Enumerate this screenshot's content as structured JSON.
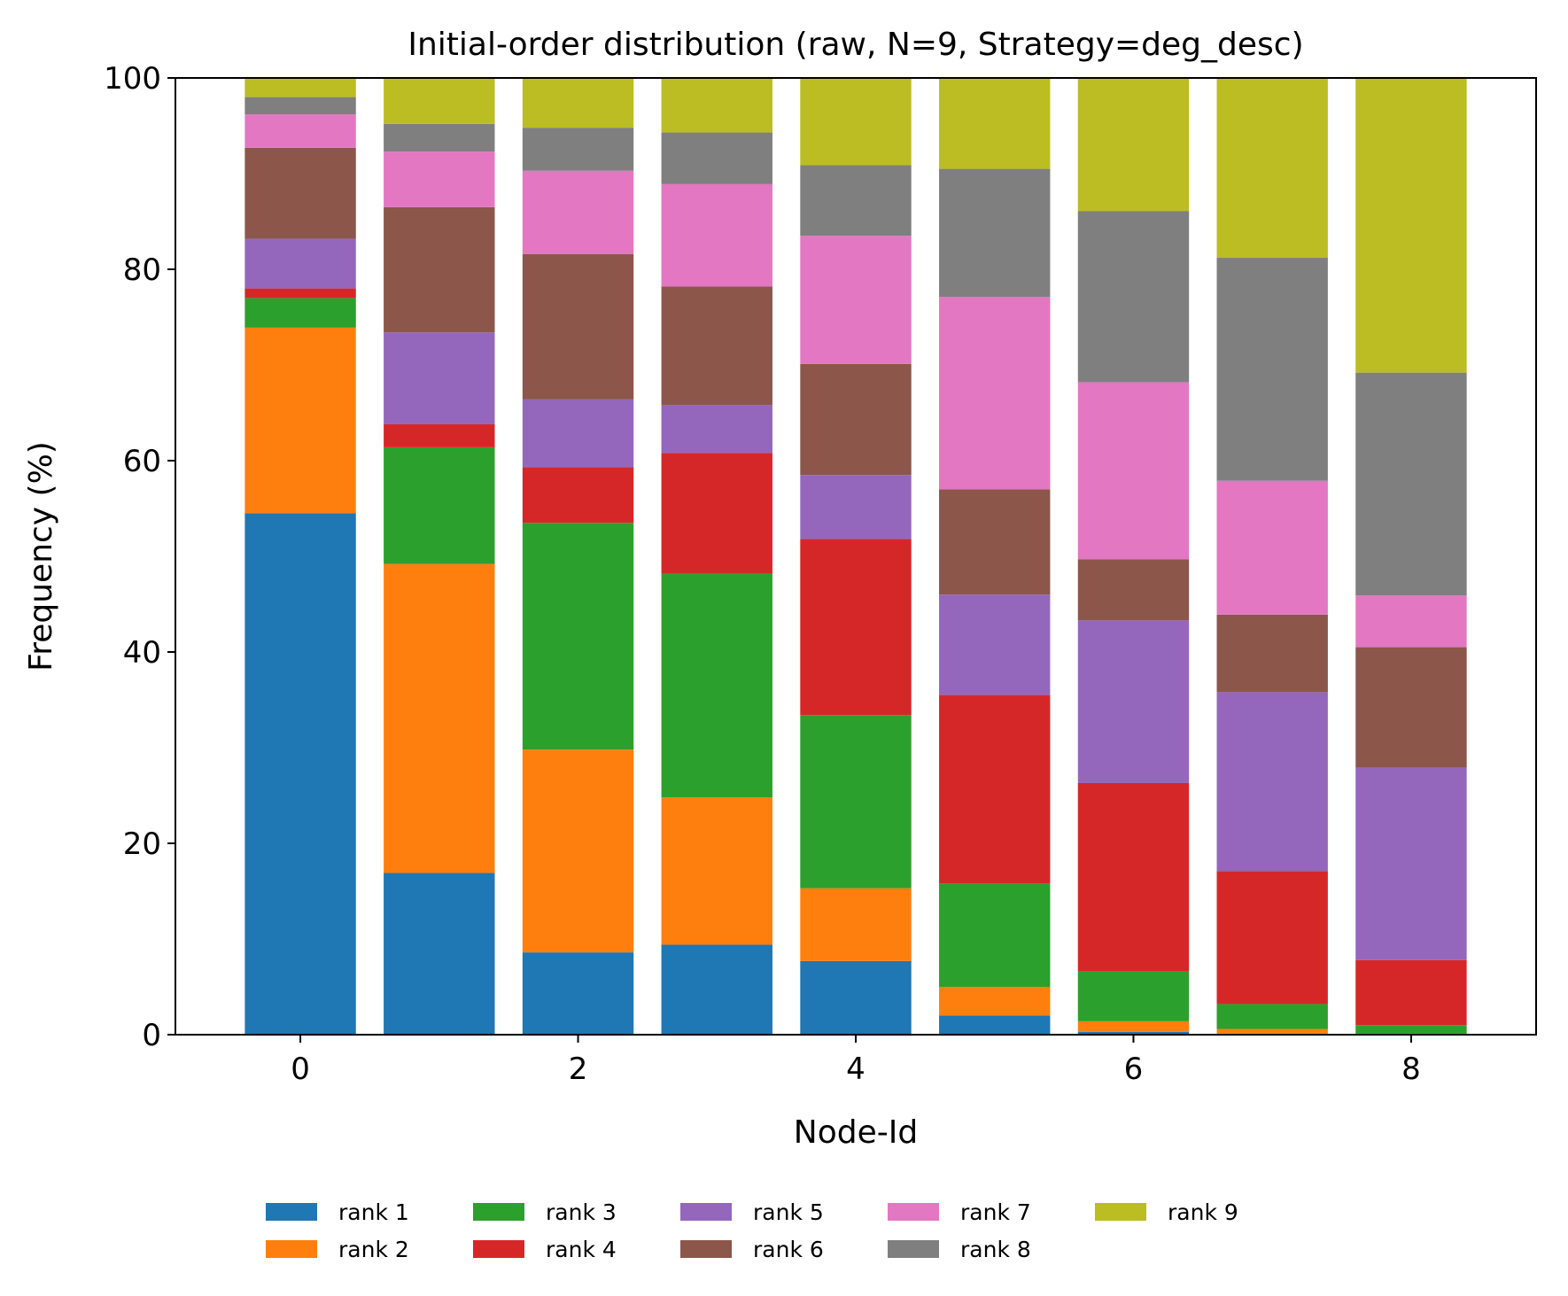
{
  "chart_data": {
    "type": "bar",
    "stacked": true,
    "title": "Initial-order distribution (raw, N=9, Strategy=deg_desc)",
    "xlabel": "Node-Id",
    "ylabel": "Frequency (%)",
    "ylim": [
      0,
      100
    ],
    "xlim": [
      -0.9,
      8.9
    ],
    "x": [
      0,
      1,
      2,
      3,
      4,
      5,
      6,
      7,
      8
    ],
    "xticks": [
      "0",
      "2",
      "4",
      "6",
      "8"
    ],
    "yticks": [
      "0",
      "20",
      "40",
      "60",
      "80",
      "100"
    ],
    "grid": false,
    "legend_position": "bottom-center",
    "series": [
      {
        "name": "rank 1",
        "color": "#1f77b4",
        "values": [
          54.5,
          16.9,
          8.6,
          9.4,
          7.7,
          2.0,
          0.3,
          0.1,
          0.0
        ]
      },
      {
        "name": "rank 2",
        "color": "#ff7f0e",
        "values": [
          19.4,
          32.3,
          21.2,
          15.4,
          7.6,
          3.0,
          1.1,
          0.5,
          0.1
        ]
      },
      {
        "name": "rank 3",
        "color": "#2ca02c",
        "values": [
          3.1,
          12.2,
          23.7,
          23.4,
          18.1,
          10.8,
          5.2,
          2.6,
          0.9
        ]
      },
      {
        "name": "rank 4",
        "color": "#d62728",
        "values": [
          1.0,
          2.4,
          5.8,
          12.6,
          18.4,
          19.7,
          19.7,
          13.9,
          6.8
        ]
      },
      {
        "name": "rank 5",
        "color": "#9467bd",
        "values": [
          5.2,
          9.6,
          7.1,
          5.0,
          6.7,
          10.5,
          17.0,
          18.7,
          20.1
        ]
      },
      {
        "name": "rank 6",
        "color": "#8c564b",
        "values": [
          9.5,
          13.1,
          15.2,
          12.4,
          11.6,
          11.0,
          6.4,
          8.1,
          12.6
        ]
      },
      {
        "name": "rank 7",
        "color": "#e377c2",
        "values": [
          3.5,
          5.8,
          8.7,
          10.7,
          13.4,
          20.1,
          18.5,
          14.0,
          5.4
        ]
      },
      {
        "name": "rank 8",
        "color": "#7f7f7f",
        "values": [
          1.8,
          2.9,
          4.5,
          5.4,
          7.4,
          13.4,
          17.9,
          23.3,
          23.3
        ]
      },
      {
        "name": "rank 9",
        "color": "#bcbd22",
        "values": [
          2.0,
          4.8,
          5.2,
          5.7,
          9.1,
          9.5,
          13.9,
          18.8,
          30.9
        ]
      }
    ]
  }
}
